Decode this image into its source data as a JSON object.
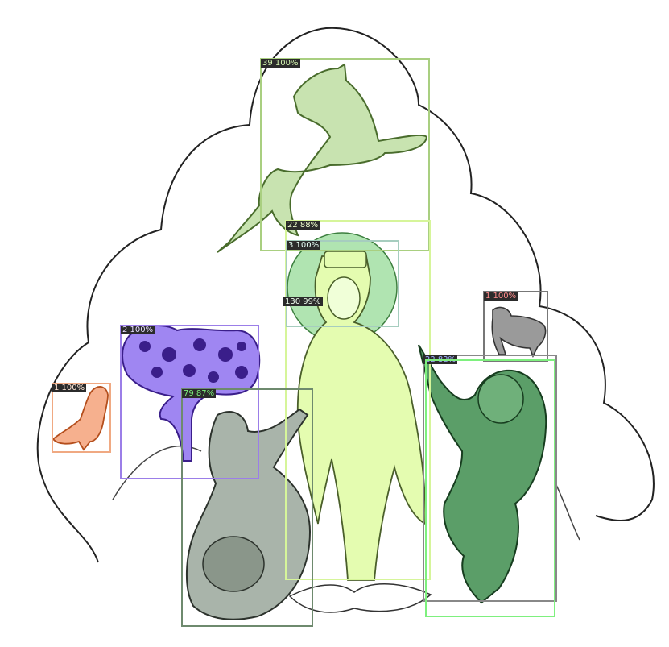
{
  "detections": [
    {
      "id": "deer",
      "label": "39 100%",
      "box": "#a9cf80",
      "text": "#d4f5b0",
      "fill": "#c8e3b0"
    },
    {
      "id": "figure",
      "label": "22 88%",
      "box": "#d6f59a",
      "text": "#f0ffd0",
      "fill": "#e4fcb0"
    },
    {
      "id": "halo",
      "label": "3 100%",
      "box": "#a6cdbf",
      "text": "#e6fff5",
      "fill": "#8fd890"
    },
    {
      "id": "face",
      "label": "130 99%",
      "box": "#c4e8c4",
      "text": "#f0fff0",
      "fill": "#f0ffd8"
    },
    {
      "id": "hen",
      "label": "1 100%",
      "box": "#777777",
      "text": "#ff8c8c",
      "fill": "#9a9a9a"
    },
    {
      "id": "tree",
      "label": "2 100%",
      "box": "#9b7ee8",
      "text": "#e6dcff",
      "fill": "#9f86f2"
    },
    {
      "id": "bird",
      "label": "1 100%",
      "box": "#f0a982",
      "text": "#ffe6d6",
      "fill": "#f6b08e"
    },
    {
      "id": "monk-left",
      "label": "79 87%",
      "box": "#6e8a6e",
      "text": "#7cf07c",
      "fill": "#a9b4aa"
    },
    {
      "id": "monk-right",
      "label": "22 82%",
      "box": "#888888",
      "text": "#9fb0ff",
      "fill": "#5b9e68"
    },
    {
      "id": "monk-right-2",
      "label": "",
      "box": "#7ef07e",
      "text": "#ffffff",
      "fill": "none"
    }
  ]
}
